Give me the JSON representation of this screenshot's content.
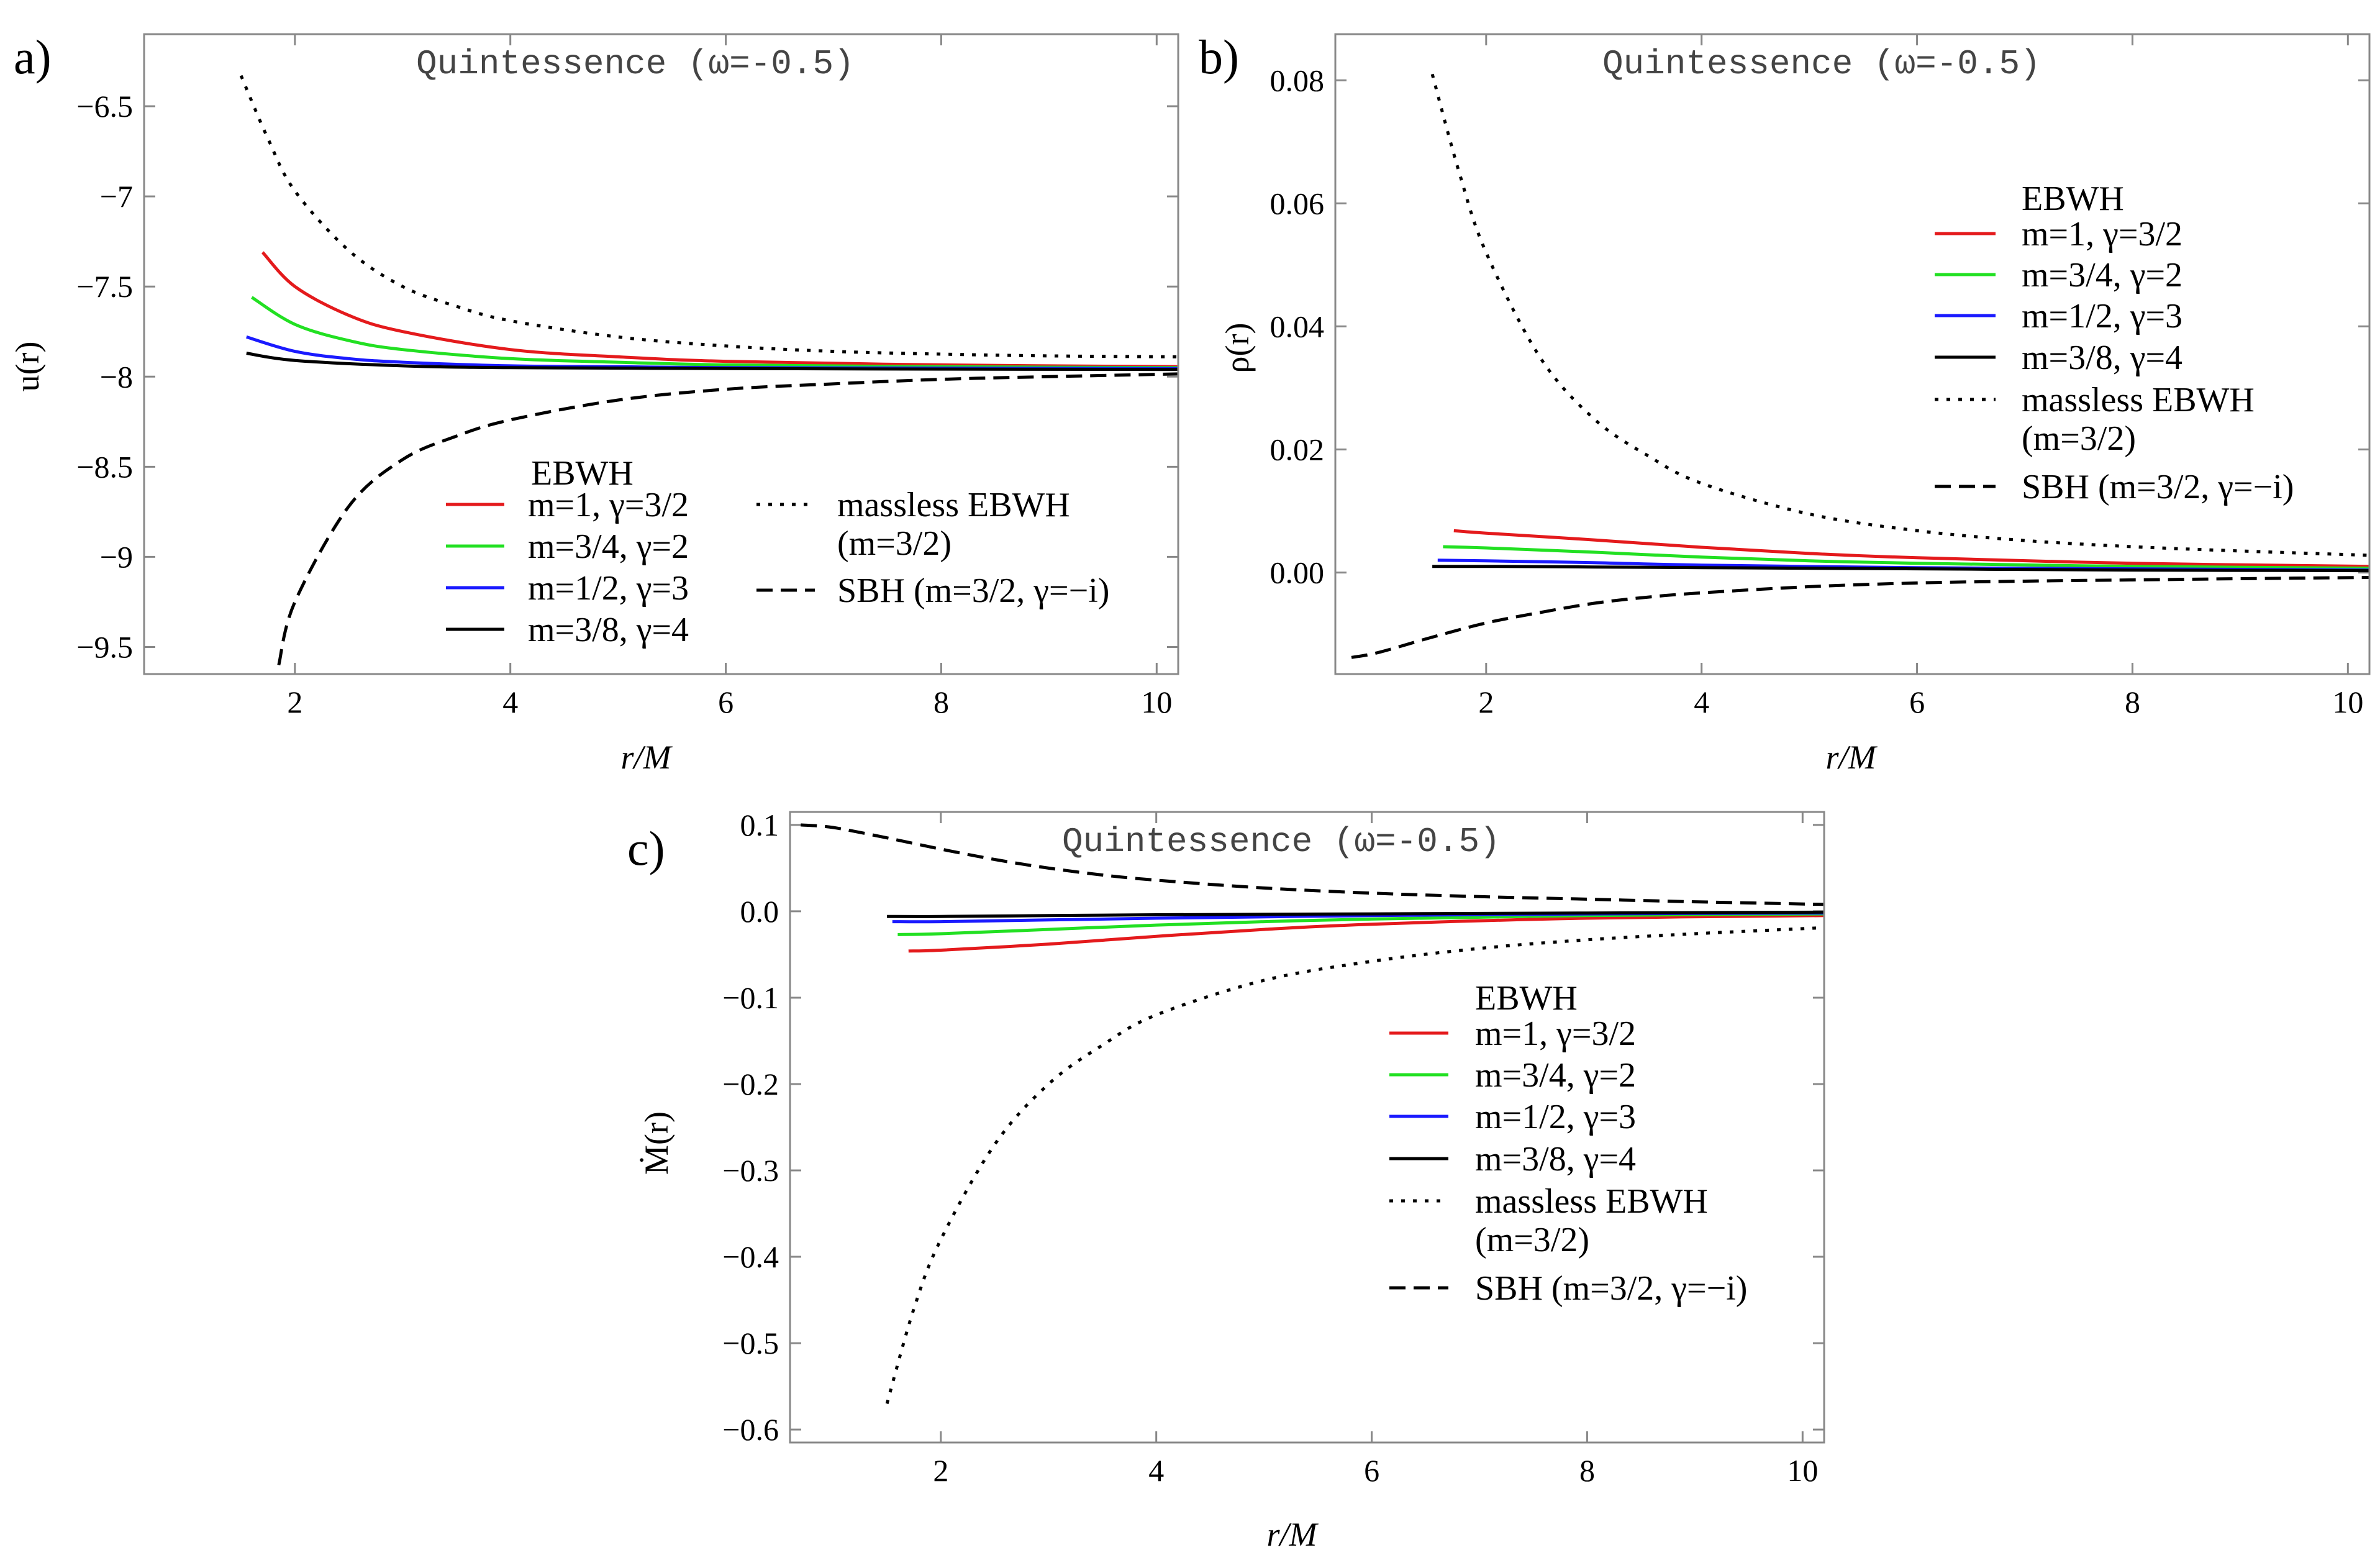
{
  "chart_data": [
    {
      "id": "a",
      "type": "line",
      "panel_label": "a)",
      "annotation": "Quintessence (ω=-0.5)",
      "xlabel": "r/M",
      "ylabel": "u(r)",
      "xlim": [
        0.6,
        10.2
      ],
      "ylim": [
        -9.65,
        -6.1
      ],
      "xticks": [
        2,
        4,
        6,
        8,
        10
      ],
      "yticks": [
        -6.5,
        -7.0,
        -7.5,
        -8.0,
        -8.5,
        -9.0,
        -9.5
      ],
      "legend_title": "EBWH",
      "legend_location": "bottom-center",
      "series": [
        {
          "name": "m=1, γ=3/2",
          "color": "#e41a1c",
          "dash": "solid",
          "x": [
            1.7,
            2,
            2.5,
            3,
            4,
            5,
            6,
            8,
            10.2
          ],
          "y": [
            -7.31,
            -7.5,
            -7.66,
            -7.75,
            -7.85,
            -7.89,
            -7.915,
            -7.935,
            -7.945
          ]
        },
        {
          "name": "m=3/4, γ=2",
          "color": "#22e022",
          "dash": "solid",
          "x": [
            1.6,
            2,
            2.5,
            3,
            4,
            5,
            6,
            8,
            10.2
          ],
          "y": [
            -7.56,
            -7.71,
            -7.8,
            -7.85,
            -7.9,
            -7.92,
            -7.935,
            -7.945,
            -7.95
          ]
        },
        {
          "name": "m=1/2, γ=3",
          "color": "#1a1aff",
          "dash": "solid",
          "x": [
            1.55,
            2,
            2.5,
            3,
            4,
            5,
            6,
            8,
            10.2
          ],
          "y": [
            -7.78,
            -7.86,
            -7.9,
            -7.92,
            -7.94,
            -7.945,
            -7.95,
            -7.953,
            -7.955
          ]
        },
        {
          "name": "m=3/8, γ=4",
          "color": "#000000",
          "dash": "solid",
          "x": [
            1.55,
            2,
            3,
            4,
            6,
            8,
            10.2
          ],
          "y": [
            -7.87,
            -7.91,
            -7.94,
            -7.95,
            -7.955,
            -7.958,
            -7.96
          ]
        },
        {
          "name": "massless EBWH",
          "name2": "(m=3/2)",
          "color": "#000000",
          "dash": "dotted",
          "x": [
            1.5,
            1.75,
            2,
            2.5,
            3,
            3.5,
            4,
            5,
            6,
            7,
            8,
            9,
            10.2
          ],
          "y": [
            -6.33,
            -6.68,
            -6.97,
            -7.3,
            -7.5,
            -7.61,
            -7.69,
            -7.78,
            -7.83,
            -7.86,
            -7.875,
            -7.885,
            -7.89
          ]
        },
        {
          "name": "SBH (m=3/2, γ=−i)",
          "color": "#000000",
          "dash": "dashed",
          "x": [
            1.85,
            2,
            2.5,
            3,
            3.5,
            4,
            5,
            6,
            7,
            8,
            9,
            10.2
          ],
          "y": [
            -9.6,
            -9.25,
            -8.72,
            -8.46,
            -8.33,
            -8.24,
            -8.13,
            -8.07,
            -8.04,
            -8.015,
            -8.0,
            -7.985
          ]
        }
      ]
    },
    {
      "id": "b",
      "type": "line",
      "panel_label": "b)",
      "annotation": "Quintessence (ω=-0.5)",
      "xlabel": "r/M",
      "ylabel": "ρ(r)",
      "xlim": [
        0.6,
        10.2
      ],
      "ylim": [
        -0.0165,
        0.0875
      ],
      "xticks": [
        2,
        4,
        6,
        8,
        10
      ],
      "yticks": [
        0.0,
        0.02,
        0.04,
        0.06,
        0.08
      ],
      "ytick_labels": [
        "0.00",
        "0.02",
        "0.04",
        "0.06",
        "0.08"
      ],
      "legend_title": "EBWH",
      "legend_location": "right",
      "series": [
        {
          "name": "m=1, γ=3/2",
          "color": "#e41a1c",
          "dash": "solid",
          "x": [
            1.7,
            2,
            3,
            4,
            5,
            6,
            8,
            10.2
          ],
          "y": [
            0.0068,
            0.0064,
            0.0053,
            0.0041,
            0.0031,
            0.0024,
            0.0015,
            0.001
          ]
        },
        {
          "name": "m=3/4, γ=2",
          "color": "#22e022",
          "dash": "solid",
          "x": [
            1.6,
            2,
            3,
            4,
            5,
            6,
            8,
            10.2
          ],
          "y": [
            0.0042,
            0.004,
            0.0033,
            0.0025,
            0.0019,
            0.0015,
            0.001,
            0.0007
          ]
        },
        {
          "name": "m=1/2, γ=3",
          "color": "#1a1aff",
          "dash": "solid",
          "x": [
            1.55,
            2,
            3,
            4,
            6,
            8,
            10.2
          ],
          "y": [
            0.002,
            0.0019,
            0.0016,
            0.0012,
            0.0008,
            0.0006,
            0.0004
          ]
        },
        {
          "name": "m=3/8, γ=4",
          "color": "#000000",
          "dash": "solid",
          "x": [
            1.5,
            2,
            3,
            4,
            6,
            8,
            10.2
          ],
          "y": [
            0.001,
            0.001,
            0.0009,
            0.0008,
            0.0006,
            0.0004,
            0.0003
          ]
        },
        {
          "name": "massless EBWH",
          "name2": "(m=3/2)",
          "color": "#000000",
          "dash": "dotted",
          "x": [
            1.5,
            1.75,
            2,
            2.5,
            3,
            3.5,
            4,
            5,
            6,
            7,
            8,
            9,
            10.2
          ],
          "y": [
            0.081,
            0.065,
            0.052,
            0.035,
            0.025,
            0.019,
            0.0145,
            0.0095,
            0.0068,
            0.0052,
            0.0042,
            0.0035,
            0.0028
          ]
        },
        {
          "name": "SBH (m=3/2, γ=−i)",
          "color": "#000000",
          "dash": "dashed",
          "x": [
            0.75,
            1,
            1.5,
            2,
            2.5,
            3,
            3.5,
            4,
            5,
            6,
            7,
            8,
            9,
            10.2
          ],
          "y": [
            -0.0138,
            -0.013,
            -0.0105,
            -0.0082,
            -0.0065,
            -0.005,
            -0.004,
            -0.0033,
            -0.0023,
            -0.0017,
            -0.0014,
            -0.0012,
            -0.001,
            -0.0008
          ]
        }
      ]
    },
    {
      "id": "c",
      "type": "line",
      "panel_label": "c)",
      "annotation": "Quintessence (ω=-0.5)",
      "xlabel": "r/M",
      "ylabel": "Ṁ(r)",
      "xlim": [
        0.6,
        10.2
      ],
      "ylim": [
        -0.615,
        0.115
      ],
      "xticks": [
        2,
        4,
        6,
        8,
        10
      ],
      "yticks": [
        0.1,
        0.0,
        -0.1,
        -0.2,
        -0.3,
        -0.4,
        -0.5,
        -0.6
      ],
      "ytick_labels": [
        "0.1",
        "0.0",
        "−0.1",
        "−0.2",
        "−0.3",
        "−0.4",
        "−0.5",
        "−0.6"
      ],
      "legend_title": "EBWH",
      "legend_location": "bottom-right",
      "series": [
        {
          "name": "m=1, γ=3/2",
          "color": "#e41a1c",
          "dash": "solid",
          "x": [
            1.7,
            2,
            3,
            4,
            5,
            6,
            8,
            10.2
          ],
          "y": [
            -0.046,
            -0.045,
            -0.038,
            -0.029,
            -0.021,
            -0.015,
            -0.008,
            -0.005
          ]
        },
        {
          "name": "m=3/4, γ=2",
          "color": "#22e022",
          "dash": "solid",
          "x": [
            1.6,
            2,
            3,
            4,
            5,
            6,
            8,
            10.2
          ],
          "y": [
            -0.027,
            -0.026,
            -0.021,
            -0.016,
            -0.012,
            -0.009,
            -0.005,
            -0.003
          ]
        },
        {
          "name": "m=1/2, γ=3",
          "color": "#1a1aff",
          "dash": "solid",
          "x": [
            1.55,
            2,
            3,
            4,
            6,
            8,
            10.2
          ],
          "y": [
            -0.012,
            -0.012,
            -0.01,
            -0.008,
            -0.005,
            -0.003,
            -0.002
          ]
        },
        {
          "name": "m=3/8, γ=4",
          "color": "#000000",
          "dash": "solid",
          "x": [
            1.5,
            2,
            3,
            4,
            6,
            8,
            10.2
          ],
          "y": [
            -0.006,
            -0.006,
            -0.005,
            -0.004,
            -0.003,
            -0.002,
            -0.001
          ]
        },
        {
          "name": "massless EBWH",
          "name2": "(m=3/2)",
          "color": "#000000",
          "dash": "dotted",
          "x": [
            1.5,
            1.75,
            2,
            2.5,
            3,
            3.5,
            4,
            5,
            6,
            7,
            8,
            9,
            10.2
          ],
          "y": [
            -0.57,
            -0.46,
            -0.38,
            -0.27,
            -0.2,
            -0.155,
            -0.12,
            -0.08,
            -0.058,
            -0.043,
            -0.033,
            -0.026,
            -0.019
          ]
        },
        {
          "name": "SBH (m=3/2, γ=−i)",
          "color": "#000000",
          "dash": "dashed",
          "x": [
            0.7,
            1,
            1.5,
            2,
            2.5,
            3,
            3.5,
            4,
            5,
            6,
            7,
            8,
            9,
            10.2
          ],
          "y": [
            0.1,
            0.097,
            0.085,
            0.072,
            0.06,
            0.05,
            0.042,
            0.036,
            0.027,
            0.021,
            0.017,
            0.014,
            0.011,
            0.008
          ]
        }
      ]
    }
  ]
}
